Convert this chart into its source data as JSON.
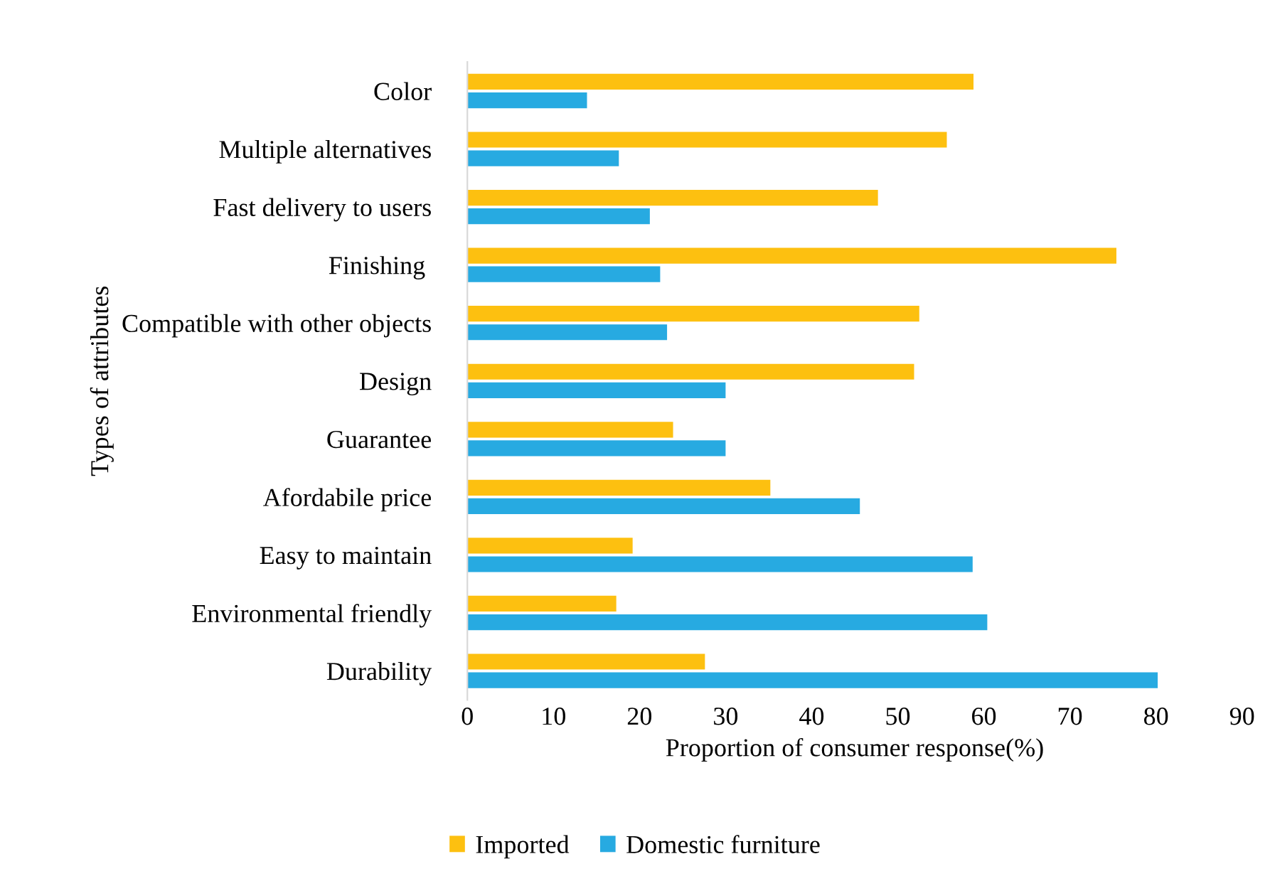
{
  "chart_data": {
    "type": "bar",
    "orientation": "horizontal",
    "xlabel": "Proportion of consumer response(%)",
    "ylabel": "Types of attributes",
    "categories": [
      "Color",
      "Multiple alternatives",
      "Fast delivery to users",
      "Finishing ",
      "Compatible with other objects",
      "Design",
      "Guarantee",
      "Afordabile price",
      "Easy to maintain",
      "Environmental friendly",
      "Durability"
    ],
    "series": [
      {
        "name": "Imported",
        "color": "#fdc010",
        "values": [
          58.8,
          55.7,
          47.7,
          75.4,
          52.5,
          51.9,
          23.9,
          35.2,
          19.2,
          17.3,
          27.6
        ]
      },
      {
        "name": "Domestic furniture",
        "color": "#27aae1",
        "values": [
          13.9,
          17.6,
          21.2,
          22.4,
          23.2,
          30.0,
          30.0,
          45.6,
          58.7,
          60.4,
          80.2
        ]
      }
    ],
    "xlim": [
      0,
      90
    ],
    "xticks": [
      0,
      10,
      20,
      30,
      40,
      50,
      60,
      70,
      80,
      90
    ],
    "grid": false,
    "legend": "bottom"
  }
}
